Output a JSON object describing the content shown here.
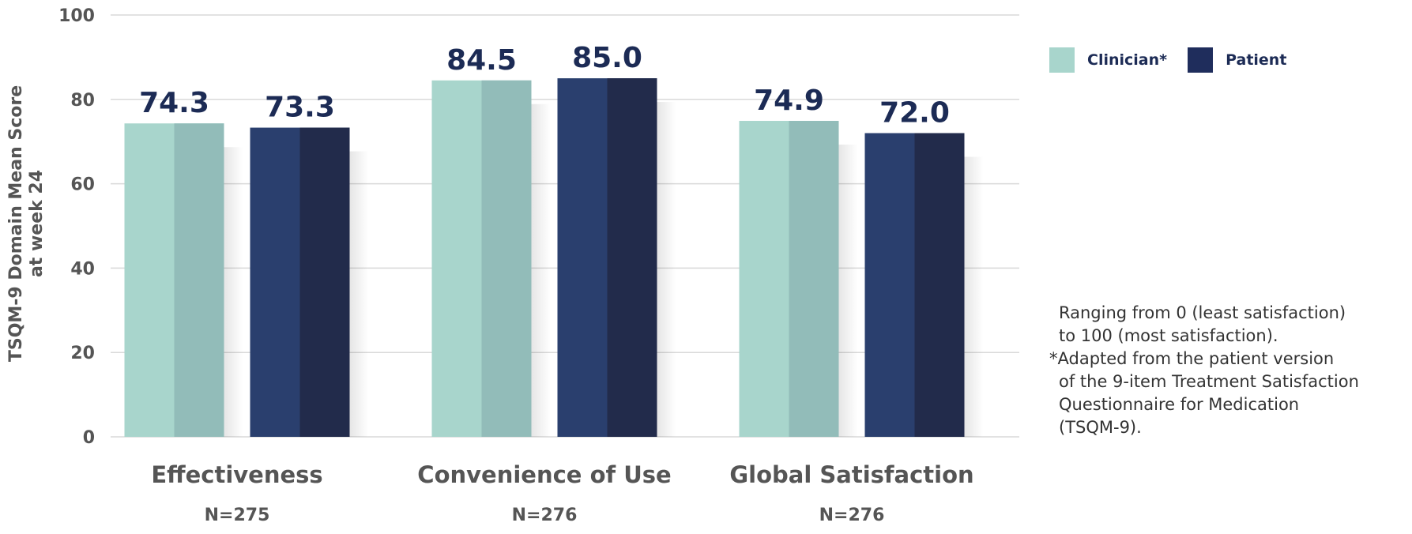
{
  "chart_data": {
    "type": "bar",
    "title": "",
    "xlabel": "",
    "ylabel_lines": [
      "TSQM-9 Domain Mean Score",
      "at week 24"
    ],
    "ylim": [
      0,
      100
    ],
    "yticks": [
      0,
      20,
      40,
      60,
      80,
      100
    ],
    "grid": true,
    "categories": [
      "Effectiveness",
      "Convenience of Use",
      "Global Satisfaction"
    ],
    "sample_sizes": [
      "N=275",
      "N=276",
      "N=276"
    ],
    "series": [
      {
        "name": "Clinician*",
        "values": [
          74.3,
          84.5,
          74.9
        ],
        "labels": [
          "74.3",
          "84.5",
          "74.9"
        ],
        "color": "#a8d5cc",
        "shade": "#92bcb9"
      },
      {
        "name": "Patient",
        "values": [
          73.3,
          85.0,
          72.0
        ],
        "labels": [
          "73.3",
          "85.0",
          "72.0"
        ],
        "color": "#2a3f6e",
        "shade": "#222b4b"
      }
    ],
    "legend_position": "top-right"
  },
  "notes": {
    "line1": "Ranging from 0 (least satisfaction)",
    "line2": "to 100 (most satisfaction).",
    "line3": "*Adapted from the patient version",
    "line4": "of the 9-item Treatment Satisfaction",
    "line5": "Questionnaire for Medication",
    "line6": "(TSQM-9)."
  },
  "colors": {
    "grid": "#d9d9d9",
    "value_label": "#1c2b55",
    "axis_text": "#555555"
  }
}
